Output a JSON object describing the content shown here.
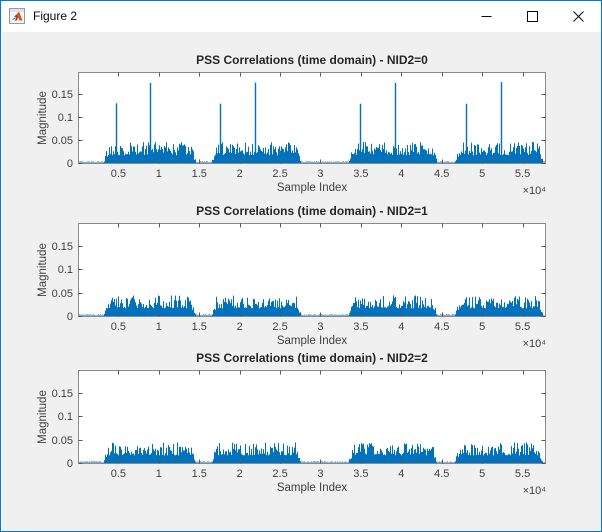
{
  "window": {
    "title": "Figure 2",
    "icon": "matlab-figure-icon",
    "controls": [
      {
        "name": "minimize",
        "icon": "minimize-icon"
      },
      {
        "name": "maximize",
        "icon": "maximize-icon"
      },
      {
        "name": "close",
        "icon": "close-icon"
      }
    ]
  },
  "colors": {
    "accent_border": "#0078d7",
    "canvas_bg": "#f0f0f0",
    "line_blue": "#0072BD",
    "baseline_blue": "#7fafd4",
    "axis_box": "#8a8a8a",
    "tick_mark": "#5a5a5a",
    "tick_text": "#404040",
    "title_text": "#262626"
  },
  "chart_data": [
    {
      "type": "line",
      "title": "PSS Correlations (time domain) - NID2=0",
      "xlabel": "Sample Index",
      "ylabel": "Magnitude",
      "x_multiplier": "×10⁴",
      "xlim": [
        0,
        5.79
      ],
      "ylim": [
        0,
        0.2
      ],
      "xticks": [
        0.5,
        1,
        1.5,
        2,
        2.5,
        3,
        3.5,
        4,
        4.5,
        5,
        5.5
      ],
      "yticks": [
        0,
        0.05,
        0.1,
        0.15
      ],
      "x_unit_scale": 10000,
      "grid": false,
      "legend": null,
      "noise_bursts": [
        [
          0.32,
          1.45
        ],
        [
          1.66,
          2.75
        ],
        [
          3.35,
          4.43
        ],
        [
          4.66,
          5.74
        ]
      ],
      "noise_peak": 0.048,
      "baseline_level": 0.004,
      "peaks": [
        {
          "x": 0.465,
          "mag": 0.132
        },
        {
          "x": 0.885,
          "mag": 0.176
        },
        {
          "x": 1.76,
          "mag": 0.131
        },
        {
          "x": 2.195,
          "mag": 0.177
        },
        {
          "x": 3.49,
          "mag": 0.131
        },
        {
          "x": 3.925,
          "mag": 0.176
        },
        {
          "x": 4.8,
          "mag": 0.131
        },
        {
          "x": 5.235,
          "mag": 0.178
        }
      ]
    },
    {
      "type": "line",
      "title": "PSS Correlations (time domain) - NID2=1",
      "xlabel": "Sample Index",
      "ylabel": "Magnitude",
      "x_multiplier": "×10⁴",
      "xlim": [
        0,
        5.79
      ],
      "ylim": [
        0,
        0.2
      ],
      "xticks": [
        0.5,
        1,
        1.5,
        2,
        2.5,
        3,
        3.5,
        4,
        4.5,
        5,
        5.5
      ],
      "yticks": [
        0,
        0.05,
        0.1,
        0.15
      ],
      "x_unit_scale": 10000,
      "grid": false,
      "legend": null,
      "noise_bursts": [
        [
          0.32,
          1.45
        ],
        [
          1.66,
          2.75
        ],
        [
          3.35,
          4.43
        ],
        [
          4.66,
          5.74
        ]
      ],
      "noise_peak": 0.046,
      "baseline_level": 0.004,
      "peaks": []
    },
    {
      "type": "line",
      "title": "PSS Correlations (time domain) - NID2=2",
      "xlabel": "Sample Index",
      "ylabel": "Magnitude",
      "x_multiplier": "×10⁴",
      "xlim": [
        0,
        5.79
      ],
      "ylim": [
        0,
        0.2
      ],
      "xticks": [
        0.5,
        1,
        1.5,
        2,
        2.5,
        3,
        3.5,
        4,
        4.5,
        5,
        5.5
      ],
      "yticks": [
        0,
        0.05,
        0.1,
        0.15
      ],
      "x_unit_scale": 10000,
      "grid": false,
      "legend": null,
      "noise_bursts": [
        [
          0.32,
          1.45
        ],
        [
          1.66,
          2.75
        ],
        [
          3.35,
          4.43
        ],
        [
          4.66,
          5.74
        ]
      ],
      "noise_peak": 0.046,
      "baseline_level": 0.004,
      "peaks": []
    }
  ]
}
